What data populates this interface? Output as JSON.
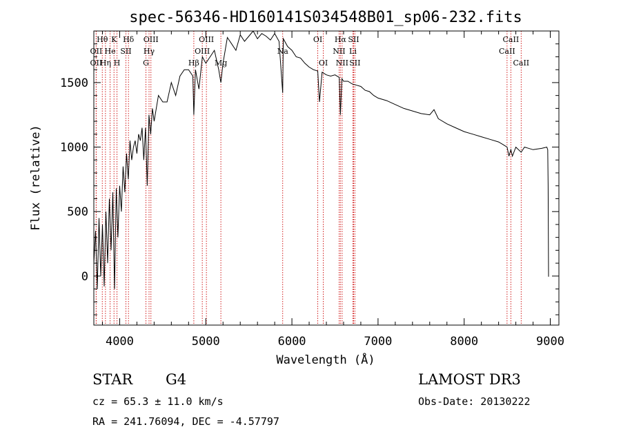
{
  "chart_data": {
    "type": "line",
    "title": "spec-56346-HD160141S034548B01_sp06-232.fits",
    "xlabel": "Wavelength (Å)",
    "ylabel": "Flux (relative)",
    "xlim": [
      3700,
      9100
    ],
    "ylim": [
      -380,
      1900
    ],
    "xticks": [
      4000,
      5000,
      6000,
      7000,
      8000,
      9000
    ],
    "yticks": [
      0,
      500,
      1000,
      1500
    ],
    "x": [
      3700,
      3720,
      3740,
      3760,
      3780,
      3800,
      3820,
      3840,
      3860,
      3880,
      3900,
      3920,
      3940,
      3960,
      3980,
      4000,
      4020,
      4040,
      4060,
      4080,
      4100,
      4120,
      4140,
      4160,
      4180,
      4200,
      4220,
      4240,
      4260,
      4280,
      4300,
      4320,
      4340,
      4360,
      4380,
      4400,
      4450,
      4500,
      4550,
      4600,
      4650,
      4700,
      4750,
      4800,
      4850,
      4861,
      4880,
      4920,
      4960,
      5000,
      5050,
      5100,
      5150,
      5175,
      5200,
      5250,
      5300,
      5350,
      5400,
      5450,
      5500,
      5550,
      5600,
      5650,
      5700,
      5750,
      5800,
      5850,
      5893,
      5900,
      5950,
      6000,
      6050,
      6100,
      6150,
      6200,
      6250,
      6300,
      6320,
      6350,
      6400,
      6450,
      6500,
      6550,
      6563,
      6580,
      6600,
      6650,
      6700,
      6750,
      6800,
      6850,
      6900,
      6950,
      7000,
      7100,
      7200,
      7300,
      7400,
      7500,
      7600,
      7650,
      7700,
      7800,
      7900,
      8000,
      8100,
      8200,
      8300,
      8400,
      8450,
      8498,
      8520,
      8542,
      8560,
      8600,
      8662,
      8700,
      8800,
      8900,
      8960,
      8970,
      8975,
      8980
    ],
    "y": [
      100,
      350,
      -100,
      450,
      0,
      400,
      -80,
      500,
      100,
      600,
      200,
      650,
      -100,
      680,
      300,
      700,
      500,
      850,
      650,
      950,
      750,
      1050,
      900,
      1000,
      1050,
      950,
      1100,
      1050,
      1150,
      900,
      1150,
      700,
      1250,
      1100,
      1300,
      1200,
      1400,
      1350,
      1350,
      1500,
      1400,
      1550,
      1600,
      1600,
      1550,
      1250,
      1600,
      1450,
      1700,
      1650,
      1700,
      1750,
      1600,
      1500,
      1650,
      1850,
      1800,
      1750,
      1870,
      1820,
      1860,
      1900,
      1840,
      1880,
      1860,
      1830,
      1880,
      1820,
      1420,
      1840,
      1780,
      1750,
      1700,
      1690,
      1650,
      1620,
      1600,
      1590,
      1350,
      1580,
      1560,
      1550,
      1560,
      1540,
      1250,
      1530,
      1510,
      1510,
      1490,
      1480,
      1470,
      1440,
      1430,
      1400,
      1380,
      1360,
      1330,
      1300,
      1280,
      1260,
      1250,
      1290,
      1220,
      1180,
      1150,
      1120,
      1100,
      1080,
      1060,
      1040,
      1020,
      1000,
      930,
      980,
      930,
      1000,
      960,
      1000,
      980,
      990,
      1000,
      980,
      700,
      -5
    ],
    "lines": [
      {
        "label": "Hθ",
        "x": 3798,
        "row": 1
      },
      {
        "label": "OII",
        "x": 3727,
        "row": 2
      },
      {
        "label": "OII",
        "x": 3727,
        "row": 3
      },
      {
        "label": "K",
        "x": 3934,
        "row": 1
      },
      {
        "label": "He",
        "x": 3889,
        "row": 2
      },
      {
        "label": "Hη",
        "x": 3835,
        "row": 3
      },
      {
        "label": "Hδ",
        "x": 4102,
        "row": 1
      },
      {
        "label": "SII",
        "x": 4072,
        "row": 2
      },
      {
        "label": "H",
        "x": 3969,
        "row": 3
      },
      {
        "label": "OIII",
        "x": 4363,
        "row": 1
      },
      {
        "label": "Hγ",
        "x": 4341,
        "row": 2
      },
      {
        "label": "G",
        "x": 4305,
        "row": 3
      },
      {
        "label": "Hβ",
        "x": 4861,
        "row": 3
      },
      {
        "label": "OIII",
        "x": 5007,
        "row": 1
      },
      {
        "label": "OIII",
        "x": 4959,
        "row": 2
      },
      {
        "label": "Mg",
        "x": 5175,
        "row": 3
      },
      {
        "label": "Na",
        "x": 5893,
        "row": 2
      },
      {
        "label": "OI",
        "x": 6300,
        "row": 1
      },
      {
        "label": "OI",
        "x": 6364,
        "row": 3
      },
      {
        "label": "Hα",
        "x": 6563,
        "row": 1
      },
      {
        "label": "NII",
        "x": 6548,
        "row": 2
      },
      {
        "label": "NII",
        "x": 6583,
        "row": 3
      },
      {
        "label": "SII",
        "x": 6716,
        "row": 1
      },
      {
        "label": "Li",
        "x": 6708,
        "row": 2
      },
      {
        "label": "SII",
        "x": 6731,
        "row": 3
      },
      {
        "label": "CaII",
        "x": 8542,
        "row": 1
      },
      {
        "label": "CaII",
        "x": 8498,
        "row": 2
      },
      {
        "label": "CaII",
        "x": 8662,
        "row": 3
      }
    ]
  },
  "info": {
    "object_class": "STAR",
    "subclass": "G4",
    "survey": "LAMOST DR3",
    "redshift": "cz = 65.3 ± 11.0 km/s",
    "obs_date": "Obs-Date: 20130222",
    "coords": "RA = 241.76094, DEC =  -4.57797"
  }
}
